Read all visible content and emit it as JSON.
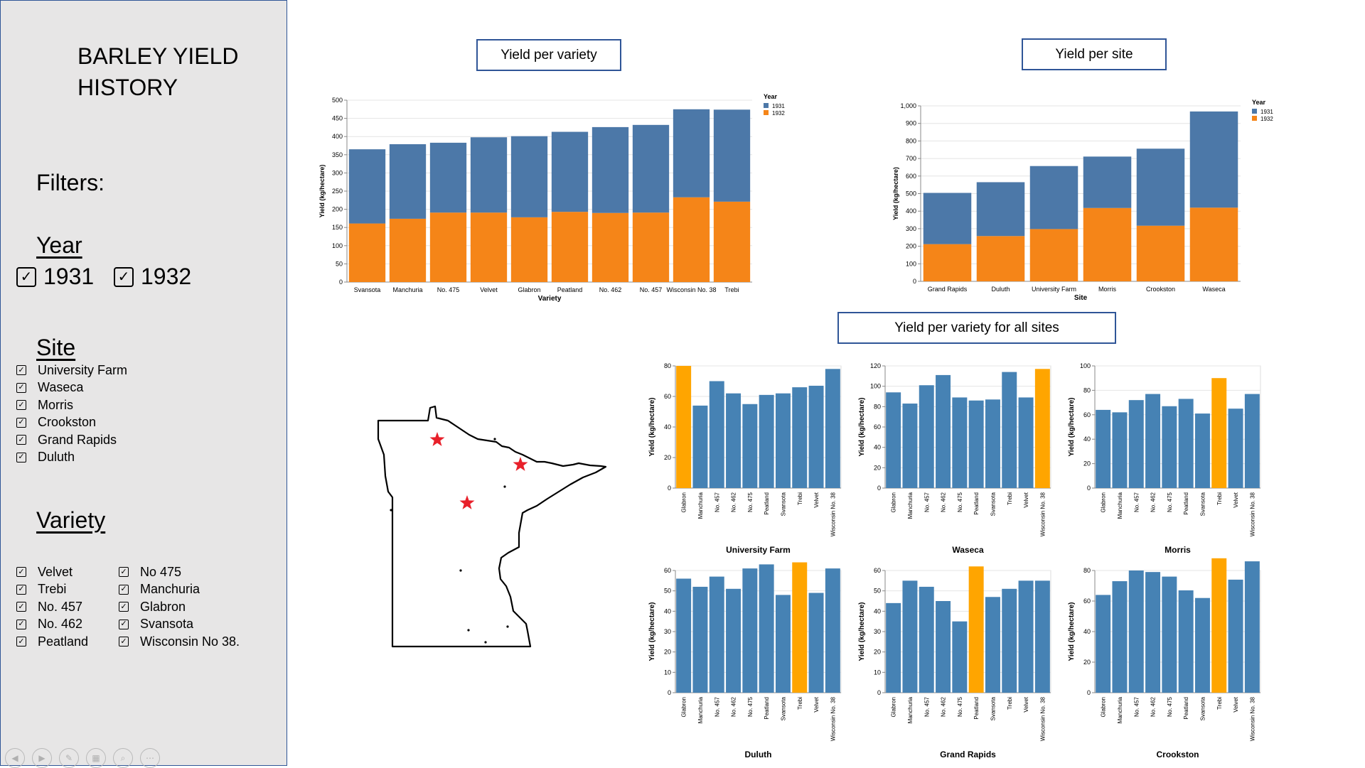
{
  "sidebar": {
    "title_line1": "BARLEY YIELD",
    "title_line2": "HISTORY",
    "filters_label": "Filters:",
    "year": {
      "label": "Year",
      "options": [
        "1931",
        "1932"
      ]
    },
    "site": {
      "label": "Site",
      "options": [
        "University Farm",
        "Waseca",
        "Morris",
        "Crookston",
        "Grand Rapids",
        "Duluth"
      ]
    },
    "variety": {
      "label": "Variety",
      "col1": [
        "Velvet",
        "Trebi",
        "No. 457",
        "No. 462",
        "Peatland"
      ],
      "col2": [
        "No 475",
        "Manchuria",
        "Glabron",
        "Svansota",
        "Wisconsin No 38."
      ]
    },
    "check_glyph": "✓",
    "tool_icons": [
      "back-icon",
      "forward-icon",
      "pen-icon",
      "slides-icon",
      "zoom-icon",
      "more-icon"
    ]
  },
  "titles": {
    "variety": "Yield per variety",
    "site": "Yield per site",
    "all_sites": "Yield per variety for all sites"
  },
  "colors": {
    "y1931": "#4c78a8",
    "y1932": "#f58518",
    "bar": "#4682b4",
    "highlight": "#ffa500",
    "star": "#e8202a"
  },
  "chart_data": [
    {
      "type": "bar",
      "stacked": true,
      "title": "Yield per variety",
      "xlabel": "Variety",
      "ylabel": "Yield (kg/hectare)",
      "ylim": [
        0,
        500
      ],
      "yticks": [
        "0",
        "50",
        "100",
        "150",
        "200",
        "250",
        "300",
        "350",
        "400",
        "450",
        "500"
      ],
      "legend_title": "Year",
      "legend_position": "top-right",
      "categories": [
        "Svansota",
        "Manchuria",
        "No. 475",
        "Velvet",
        "Glabron",
        "Peatland",
        "No. 462",
        "No. 457",
        "Wisconsin No. 38",
        "Trebi"
      ],
      "series": [
        {
          "name": "1931",
          "values": [
            204,
            205,
            192,
            207,
            223,
            220,
            236,
            241,
            242,
            253
          ]
        },
        {
          "name": "1932",
          "values": [
            161,
            174,
            191,
            191,
            178,
            193,
            190,
            191,
            233,
            221
          ]
        }
      ]
    },
    {
      "type": "bar",
      "stacked": true,
      "title": "Yield per site",
      "xlabel": "Site",
      "ylabel": "Yield (kg/hectare)",
      "ylim": [
        0,
        1000
      ],
      "yticks": [
        "0",
        "100",
        "200",
        "300",
        "400",
        "500",
        "600",
        "700",
        "800",
        "900",
        "1,000"
      ],
      "legend_title": "Year",
      "legend_position": "top-right",
      "categories": [
        "Grand Rapids",
        "Duluth",
        "University Farm",
        "Morris",
        "Crookston",
        "Waseca"
      ],
      "series": [
        {
          "name": "1931",
          "values": [
            292,
            307,
            359,
            293,
            439,
            548
          ]
        },
        {
          "name": "1932",
          "values": [
            212,
            258,
            298,
            418,
            317,
            420
          ]
        }
      ]
    },
    {
      "type": "bar",
      "title": "Yield per variety for all sites",
      "ylabel": "Yield (kg/hectare)",
      "categories": [
        "Glabron",
        "Manchuria",
        "No. 457",
        "No. 462",
        "No. 475",
        "Peatland",
        "Svansota",
        "Trebi",
        "Velvet",
        "Wisconsin No. 38"
      ],
      "panels": [
        {
          "site": "University Farm",
          "ylim": [
            0,
            80
          ],
          "yticks": [
            "0",
            "20",
            "40",
            "60",
            "80"
          ],
          "values": [
            80,
            54,
            70,
            62,
            55,
            61,
            62,
            66,
            67,
            78
          ],
          "highlight": "Glabron"
        },
        {
          "site": "Waseca",
          "ylim": [
            0,
            120
          ],
          "yticks": [
            "0",
            "20",
            "40",
            "60",
            "80",
            "100",
            "120"
          ],
          "values": [
            94,
            83,
            101,
            111,
            89,
            86,
            87,
            114,
            89,
            117
          ],
          "highlight": "Wisconsin No. 38"
        },
        {
          "site": "Morris",
          "ylim": [
            0,
            100
          ],
          "yticks": [
            "0",
            "20",
            "40",
            "60",
            "80",
            "100"
          ],
          "values": [
            64,
            62,
            72,
            77,
            67,
            73,
            61,
            90,
            65,
            77
          ],
          "highlight": "Trebi"
        },
        {
          "site": "Duluth",
          "ylim": [
            0,
            60
          ],
          "yticks": [
            "0",
            "10",
            "20",
            "30",
            "40",
            "50",
            "60"
          ],
          "values": [
            56,
            52,
            57,
            51,
            61,
            63,
            48,
            64,
            49,
            61
          ],
          "highlight": "Trebi"
        },
        {
          "site": "Grand Rapids",
          "ylim": [
            0,
            60
          ],
          "yticks": [
            "0",
            "10",
            "20",
            "30",
            "40",
            "50",
            "60"
          ],
          "values": [
            44,
            55,
            52,
            45,
            35,
            62,
            47,
            51,
            55,
            55
          ],
          "highlight": "Peatland"
        },
        {
          "site": "Crookston",
          "ylim": [
            0,
            80
          ],
          "yticks": [
            "0",
            "20",
            "40",
            "60",
            "80"
          ],
          "values": [
            64,
            73,
            80,
            79,
            76,
            67,
            62,
            88,
            74,
            86
          ],
          "highlight": "Trebi"
        }
      ]
    }
  ]
}
